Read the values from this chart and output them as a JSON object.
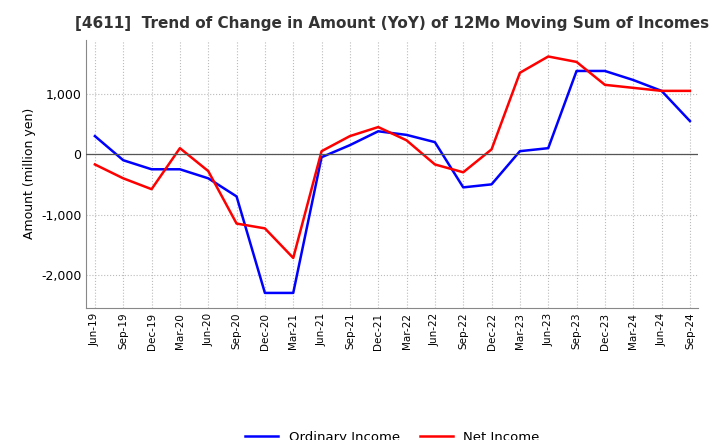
{
  "title": "[4611]  Trend of Change in Amount (YoY) of 12Mo Moving Sum of Incomes",
  "ylabel": "Amount (million yen)",
  "x_labels": [
    "Jun-19",
    "Sep-19",
    "Dec-19",
    "Mar-20",
    "Jun-20",
    "Sep-20",
    "Dec-20",
    "Mar-21",
    "Jun-21",
    "Sep-21",
    "Dec-21",
    "Mar-22",
    "Jun-22",
    "Sep-22",
    "Dec-22",
    "Mar-23",
    "Jun-23",
    "Sep-23",
    "Dec-23",
    "Mar-24",
    "Jun-24",
    "Sep-24"
  ],
  "ordinary_income": [
    300,
    -100,
    -250,
    -250,
    -400,
    -700,
    -2300,
    -2300,
    -50,
    150,
    380,
    320,
    200,
    -550,
    -500,
    50,
    100,
    1380,
    1380,
    1230,
    1050,
    550
  ],
  "net_income": [
    -170,
    -400,
    -580,
    100,
    -280,
    -1150,
    -1230,
    -1720,
    50,
    300,
    450,
    230,
    -170,
    -300,
    80,
    1350,
    1620,
    1530,
    1150,
    1100,
    1050,
    1050
  ],
  "ordinary_color": "#0000ff",
  "net_color": "#ff0000",
  "ylim": [
    -2550,
    1900
  ],
  "yticks": [
    -2000,
    -1000,
    0,
    1000
  ],
  "background_color": "#ffffff",
  "grid_color": "#bbbbbb",
  "legend_ordinary": "Ordinary Income",
  "legend_net": "Net Income",
  "line_width": 1.8
}
